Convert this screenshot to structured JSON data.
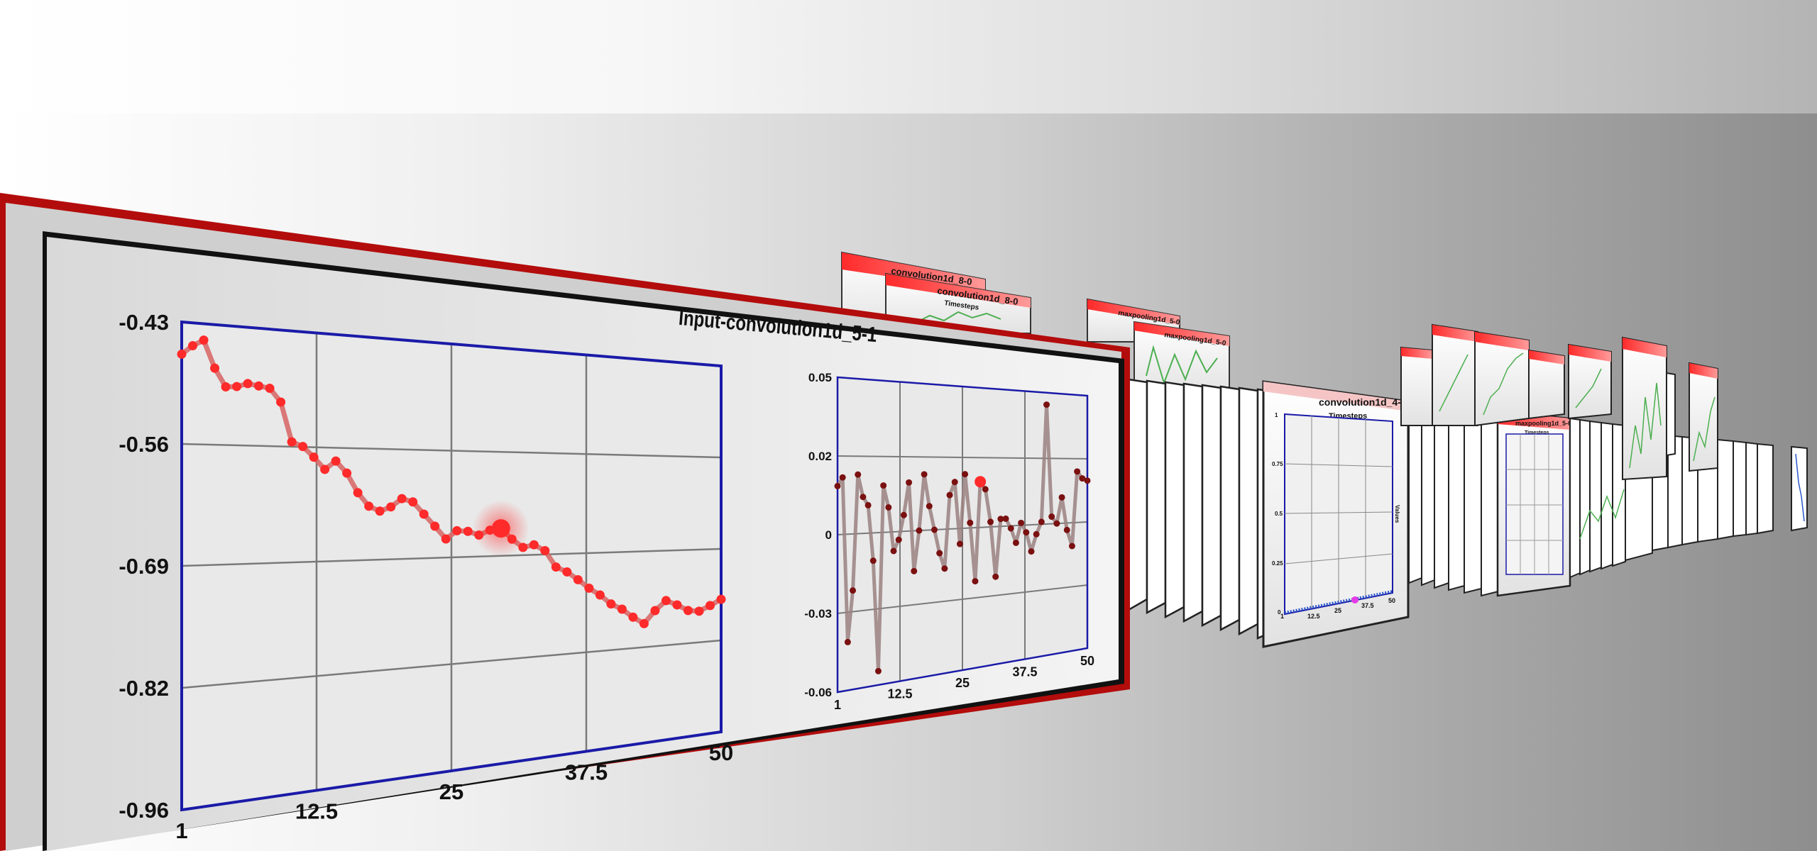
{
  "colors": {
    "frame_red": "#b30c0c",
    "plot_border": "#1a1aa8",
    "series_primary": "#ff2a2a",
    "series_line": "#d86a6a",
    "series_secondary_line": "#9a8080",
    "series_secondary_marker": "#7a1010",
    "mini_series": "#4caf50",
    "mini_points": "#2a57c9",
    "highlight_magenta": "#e43ce4"
  },
  "chart_data": [
    {
      "type": "line",
      "title": "Input-convolution1d_5-1",
      "x": [
        1,
        2,
        3,
        4,
        5,
        6,
        7,
        8,
        9,
        10,
        11,
        12,
        13,
        14,
        15,
        16,
        17,
        18,
        19,
        20,
        21,
        22,
        23,
        24,
        25,
        26,
        27,
        28,
        29,
        30,
        31,
        32,
        33,
        34,
        35,
        36,
        37,
        38,
        39,
        40,
        41,
        42,
        43,
        44,
        45,
        46,
        47,
        48,
        49,
        50
      ],
      "values": [
        -0.465,
        -0.455,
        -0.448,
        -0.478,
        -0.498,
        -0.497,
        -0.493,
        -0.495,
        -0.497,
        -0.512,
        -0.557,
        -0.562,
        -0.574,
        -0.588,
        -0.578,
        -0.592,
        -0.615,
        -0.631,
        -0.637,
        -0.632,
        -0.622,
        -0.626,
        -0.641,
        -0.656,
        -0.672,
        -0.662,
        -0.663,
        -0.668,
        -0.662,
        -0.66,
        -0.674,
        -0.685,
        -0.682,
        -0.69,
        -0.712,
        -0.719,
        -0.73,
        -0.742,
        -0.752,
        -0.765,
        -0.773,
        -0.785,
        -0.795,
        -0.778,
        -0.765,
        -0.772,
        -0.781,
        -0.783,
        -0.776,
        -0.768
      ],
      "highlight_x": 30,
      "ylim": [
        -0.96,
        -0.43
      ],
      "xlim": [
        1,
        50
      ],
      "y_ticks": [
        "-0.43",
        "-0.56",
        "-0.69",
        "-0.82",
        "-0.96"
      ],
      "x_ticks": [
        "1",
        "12.5",
        "25",
        "37.5",
        "50"
      ],
      "grid": true
    },
    {
      "type": "line",
      "x": [
        1,
        2,
        3,
        4,
        5,
        6,
        7,
        8,
        9,
        10,
        11,
        12,
        13,
        14,
        15,
        16,
        17,
        18,
        19,
        20,
        21,
        22,
        23,
        24,
        25,
        26,
        27,
        28,
        29,
        30,
        31,
        32,
        33,
        34,
        35,
        36,
        37,
        38,
        39,
        40,
        41,
        42,
        43,
        44,
        45,
        46,
        47,
        48,
        49,
        50
      ],
      "values": [
        0.012,
        0.015,
        -0.043,
        -0.025,
        0.016,
        0.008,
        0.005,
        -0.015,
        -0.055,
        0.012,
        0.004,
        -0.012,
        -0.008,
        0.001,
        0.013,
        -0.02,
        -0.005,
        0.016,
        0.004,
        -0.005,
        -0.014,
        -0.02,
        0.008,
        0.013,
        -0.011,
        0.016,
        -0.003,
        -0.026,
        0.013,
        0.01,
        -0.003,
        -0.025,
        -0.002,
        -0.002,
        -0.006,
        -0.012,
        -0.004,
        -0.008,
        -0.016,
        -0.009,
        -0.004,
        0.045,
        -0.002,
        -0.005,
        0.006,
        -0.008,
        -0.015,
        0.017,
        0.014,
        0.013
      ],
      "highlight_x": 29,
      "ylim": [
        -0.06,
        0.05
      ],
      "xlim": [
        1,
        50
      ],
      "y_ticks": [
        "0.05",
        "0.02",
        "0",
        "-0.03",
        "-0.06"
      ],
      "x_ticks": [
        "1",
        "12.5",
        "25",
        "37.5",
        "50"
      ],
      "grid": true
    }
  ],
  "background_panels": {
    "labels": {
      "conv_8_0": "convolution1d_8-0",
      "conv_8_0b": "convolution1d_8-0",
      "timesteps": "Timesteps",
      "maxpool_a": "maxpooling1d_5-0",
      "maxpool_b": "maxpooling1d_5-0",
      "conv_4_0": "convolution1d_4-0",
      "conv_4_0_sub": "Timesteps",
      "conv_4_0_ylabel": "Values",
      "maxpool_main": "maxpooling1d_5-0",
      "maxpool_main_sub": "Timesteps"
    },
    "conv_4_0_x_ticks": [
      "1",
      "12.5",
      "25",
      "37.5",
      "50"
    ],
    "conv_4_0_y_ticks": [
      "1",
      "0.75",
      "0.5",
      "0.25",
      "0"
    ],
    "conv_4_0_highlight_x": 32
  }
}
